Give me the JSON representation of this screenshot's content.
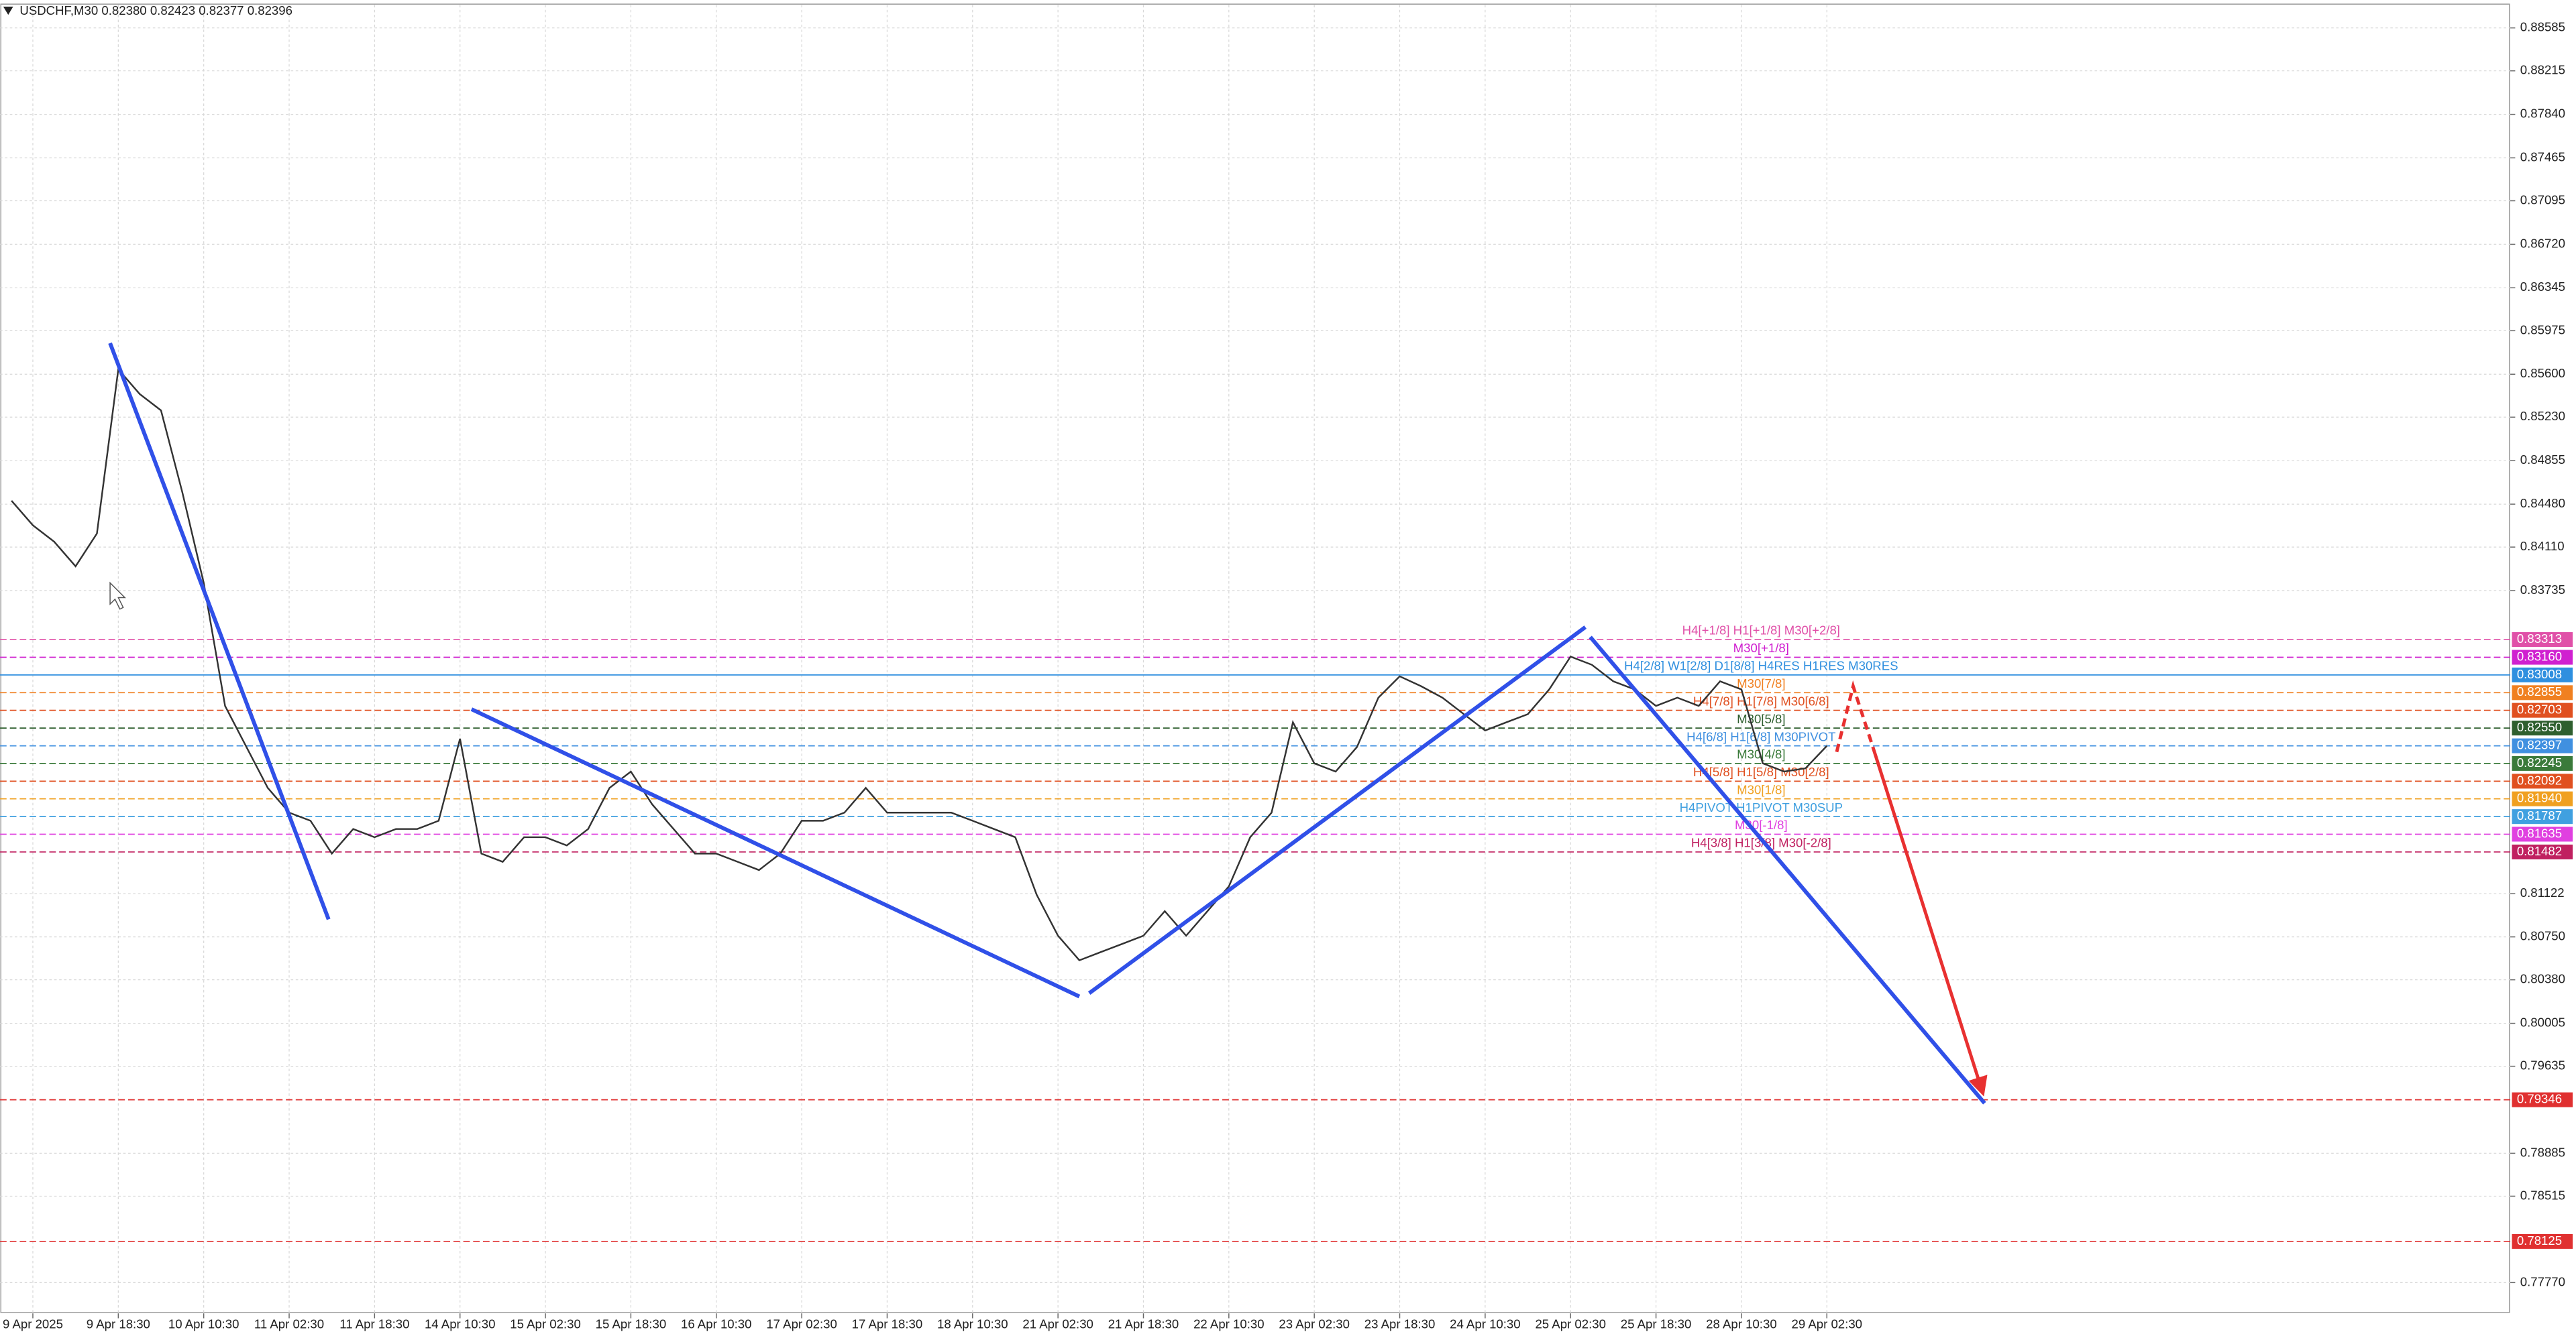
{
  "header": "USDCHF,M30  0.82380 0.82423 0.82377 0.82396",
  "chart_data": {
    "type": "line",
    "color": "#333333",
    "grid": true,
    "categories": [
      null,
      "9 Apr 2025",
      null,
      null,
      null,
      "9 Apr 18:30",
      null,
      null,
      null,
      "10 Apr 10:30",
      null,
      null,
      null,
      "11 Apr 02:30",
      null,
      null,
      null,
      "11 Apr 18:30",
      null,
      null,
      null,
      "14 Apr 10:30",
      null,
      null,
      null,
      "15 Apr 02:30",
      null,
      null,
      null,
      "15 Apr 18:30",
      null,
      null,
      null,
      "16 Apr 10:30",
      null,
      null,
      null,
      "17 Apr 02:30",
      null,
      null,
      null,
      "17 Apr 18:30",
      null,
      null,
      null,
      "18 Apr 10:30",
      null,
      null,
      null,
      "21 Apr 02:30",
      null,
      null,
      null,
      "21 Apr 18:30",
      null,
      null,
      null,
      "22 Apr 10:30",
      null,
      null,
      null,
      "23 Apr 02:30",
      null,
      null,
      null,
      "23 Apr 18:30",
      null,
      null,
      null,
      "24 Apr 10:30",
      null,
      null,
      null,
      "25 Apr 02:30",
      null,
      null,
      null,
      "25 Apr 18:30",
      null,
      null,
      null,
      "28 Apr 10:30",
      null,
      null,
      null,
      "29 Apr 02:30"
    ],
    "values": [
      0.8451,
      0.84298,
      0.84156,
      0.83944,
      0.84227,
      0.85642,
      0.8543,
      0.85288,
      0.84581,
      0.83802,
      0.82741,
      0.82387,
      0.82034,
      0.81821,
      0.81751,
      0.81468,
      0.8168,
      0.81609,
      0.8168,
      0.8168,
      0.81751,
      0.82458,
      0.81468,
      0.81397,
      0.81609,
      0.81609,
      0.81538,
      0.8168,
      0.82034,
      0.82175,
      0.81892,
      0.8168,
      0.81468,
      0.81468,
      0.81397,
      0.81326,
      0.81468,
      0.81751,
      0.81751,
      0.81821,
      0.82034,
      0.81821,
      0.81821,
      0.81821,
      0.81821,
      0.81751,
      0.8168,
      0.81609,
      0.81114,
      0.8076,
      0.80548,
      0.80619,
      0.80689,
      0.8076,
      0.80972,
      0.8076,
      0.80972,
      0.81185,
      0.81609,
      0.81821,
      0.826,
      0.82246,
      0.82175,
      0.82387,
      0.82812,
      0.82996,
      0.82911,
      0.82812,
      0.8267,
      0.82529,
      0.826,
      0.8267,
      0.82883,
      0.83166,
      0.83095,
      0.82953,
      0.82883,
      0.82741,
      0.82812,
      0.82741,
      0.82953,
      0.82883,
      0.82246,
      0.82175,
      0.82203,
      0.82396
    ],
    "ylim": [
      0.77505,
      0.88783
    ],
    "yticks": [
      0.88585,
      0.88215,
      {
        "value": 0.8784,
        "label": "0.87840"
      },
      0.87465,
      0.87095,
      {
        "value": 0.8672,
        "label": "0.86720"
      },
      0.86345,
      0.85975,
      {
        "value": 0.856,
        "label": "0.85600"
      },
      {
        "value": 0.8523,
        "label": "0.85230"
      },
      0.84855,
      {
        "value": 0.8448,
        "label": "0.84480"
      },
      {
        "value": 0.8411,
        "label": "0.84110"
      },
      0.83735,
      0.81122,
      {
        "value": 0.8075,
        "label": "0.80750"
      },
      {
        "value": 0.8038,
        "label": "0.80380"
      },
      0.80005,
      0.79635,
      0.78885,
      0.78515,
      {
        "value": 0.7777,
        "label": "0.77770"
      }
    ],
    "levels": [
      {
        "value": 0.83313,
        "label": "0.83313",
        "color": "#e050a8",
        "text": "H4[+1/8] H1[+1/8] M30[+2/8]"
      },
      {
        "value": 0.8316,
        "label": "0.83160",
        "color": "#d020d0",
        "text": "M30[+1/8]"
      },
      {
        "value": 0.83008,
        "label": "0.83008",
        "color": "#2f8fdf",
        "text": "H4[2/8] W1[2/8] D1[8/8] H4RES H1RES M30RES"
      },
      {
        "value": 0.82855,
        "label": "0.82855",
        "color": "#f08020",
        "text": "M30[7/8]"
      },
      {
        "value": 0.82703,
        "label": "0.82703",
        "color": "#e05020",
        "text": "H4[7/8] H1[7/8] M30[6/8]"
      },
      {
        "value": 0.8255,
        "label": "0.82550",
        "color": "#2f5f2f",
        "text": "M30[5/8]"
      },
      {
        "value": 0.82397,
        "label": "0.82397",
        "color": "#4090e0",
        "text": "H4[6/8] H1[6/8] M30PIVOT"
      },
      {
        "value": 0.82245,
        "label": "0.82245",
        "color": "#3a7a3a",
        "text": "M30[4/8]"
      },
      {
        "value": 0.82092,
        "label": "0.82092",
        "color": "#e05020",
        "text": "H4[5/8] H1[5/8] M30[2/8]"
      },
      {
        "value": 0.8194,
        "label": "0.81940",
        "color": "#f0a020",
        "text": "M30[1/8]"
      },
      {
        "value": 0.81787,
        "label": "0.81787",
        "color": "#40a0e0",
        "text": "H4PIVOT H1PIVOT M30SUP"
      },
      {
        "value": 0.81635,
        "label": "0.81635",
        "color": "#e040e0",
        "text": "M30[-1/8]"
      },
      {
        "value": 0.81482,
        "label": "0.81482",
        "color": "#c02060",
        "text": "H4[3/8] H1[3/8] M30[-2/8]"
      },
      {
        "value": 0.79346,
        "label": "0.79346",
        "color": "#e03030"
      },
      {
        "value": 0.78125,
        "label": "0.78125",
        "color": "#e03030"
      }
    ]
  }
}
